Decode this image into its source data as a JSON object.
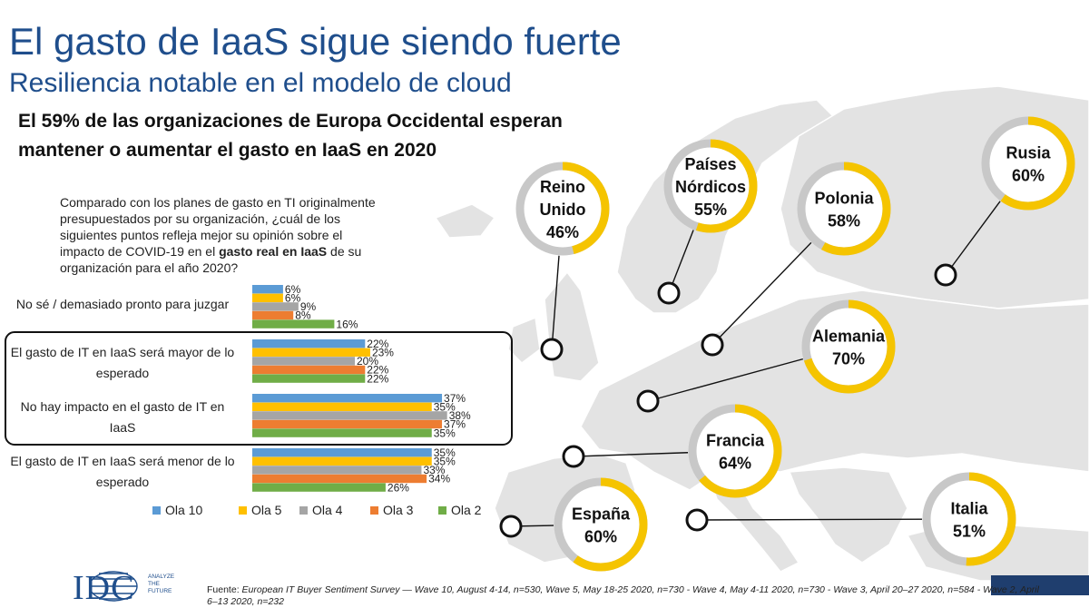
{
  "title": "El gasto de IaaS sigue siendo fuerte",
  "subtitle": "Resiliencia notable en el modelo de cloud",
  "headline": "El 59% de las organizaciones de Europa Occidental esperan mantener o aumentar el gasto en IaaS en 2020",
  "question": {
    "text": "Comparado con los planes de gasto en TI originalmente presupuestados por su organización, ¿cuál de los siguientes puntos refleja mejor su opinión sobre el impacto de COVID-19 en el ",
    "bold": "gasto real en IaaS",
    "tail": " de su organización para el año 2020?"
  },
  "colors": {
    "title": "#1f4e8c",
    "ring_yellow": "#f5c400",
    "ring_grey": "#c8c8c8",
    "map_land": "#e3e3e3"
  },
  "chart_data": {
    "type": "bar",
    "orientation": "horizontal",
    "categories": [
      "No sé / demasiado pronto para juzgar",
      "El gasto de IT en IaaS será mayor de lo esperado",
      "No hay impacto en el gasto de IT en IaaS",
      "El gasto de IT en IaaS será menor de lo esperado"
    ],
    "series": [
      {
        "name": "Ola 10",
        "color": "#5b9bd5",
        "values": [
          6,
          22,
          37,
          35
        ]
      },
      {
        "name": "Ola 5",
        "color": "#ffc000",
        "values": [
          6,
          23,
          35,
          35
        ]
      },
      {
        "name": "Ola 4",
        "color": "#a5a5a5",
        "values": [
          9,
          20,
          38,
          33
        ]
      },
      {
        "name": "Ola 3",
        "color": "#ed7d31",
        "values": [
          8,
          22,
          37,
          34
        ]
      },
      {
        "name": "Ola 2",
        "color": "#70ad47",
        "values": [
          16,
          22,
          35,
          26
        ]
      }
    ],
    "unit": "%",
    "highlighted_categories": [
      1,
      2
    ],
    "legend": "bottom"
  },
  "regions": [
    {
      "name": "Reino Unido",
      "label_lines": [
        "Reino",
        "Unido"
      ],
      "value": 46,
      "value_label": "46%"
    },
    {
      "name": "Países Nórdicos",
      "label_lines": [
        "Países",
        "Nórdicos"
      ],
      "value": 55,
      "value_label": "55%"
    },
    {
      "name": "Polonia",
      "label_lines": [
        "Polonia"
      ],
      "value": 58,
      "value_label": "58%"
    },
    {
      "name": "Rusia",
      "label_lines": [
        "Rusia"
      ],
      "value": 60,
      "value_label": "60%"
    },
    {
      "name": "Alemania",
      "label_lines": [
        "Alemania"
      ],
      "value": 70,
      "value_label": "70%"
    },
    {
      "name": "Francia",
      "label_lines": [
        "Francia"
      ],
      "value": 64,
      "value_label": "64%"
    },
    {
      "name": "España",
      "label_lines": [
        "España"
      ],
      "value": 60,
      "value_label": "60%"
    },
    {
      "name": "Italia",
      "label_lines": [
        "Italia"
      ],
      "value": 51,
      "value_label": "51%"
    }
  ],
  "footer": {
    "prefix": "Fuente: ",
    "text": "European IT Buyer Sentiment Survey — Wave 10, August 4-14, n=530, Wave 5, May 18-25 2020, n=730 - Wave 4, May 4-11 2020, n=730 - Wave 3, April 20–27 2020, n=584 - Wave 2, April 6–13 2020, n=232"
  },
  "logo": {
    "name": "IDC",
    "tagline": [
      "ANALYZE",
      "THE",
      "FUTURE"
    ]
  }
}
